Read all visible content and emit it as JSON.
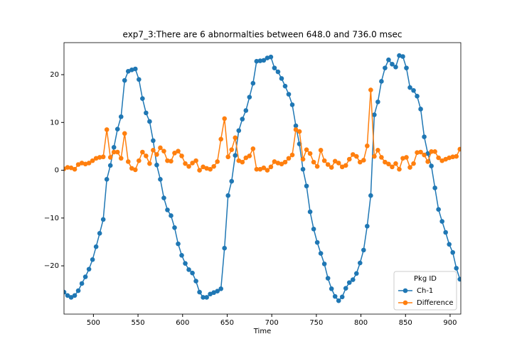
{
  "chart_data": {
    "type": "line",
    "title": "exp7_3:There are 6 abnormalties between 648.0 and 736.0 msec",
    "x_label": "Time",
    "x": [
      467,
      471,
      475,
      479,
      483,
      487,
      491,
      495,
      499,
      503,
      507,
      511,
      515,
      519,
      523,
      527,
      531,
      535,
      539,
      543,
      547,
      551,
      555,
      559,
      563,
      567,
      571,
      575,
      579,
      583,
      587,
      591,
      595,
      599,
      603,
      607,
      611,
      615,
      619,
      623,
      627,
      631,
      635,
      639,
      643,
      647,
      651,
      655,
      659,
      663,
      667,
      671,
      675,
      679,
      683,
      687,
      691,
      695,
      699,
      703,
      707,
      711,
      715,
      719,
      723,
      727,
      731,
      735,
      739,
      743,
      747,
      751,
      755,
      759,
      763,
      767,
      771,
      775,
      779,
      783,
      787,
      791,
      795,
      799,
      803,
      807,
      811,
      815,
      819,
      823,
      827,
      831,
      835,
      839,
      843,
      847,
      851,
      855,
      859,
      863,
      867,
      871,
      875,
      879,
      883,
      887,
      891,
      895,
      899,
      903,
      907,
      911
    ],
    "series": [
      {
        "name": "Ch-1",
        "color": "#1f77b4",
        "values": [
          -25.5,
          -26.2,
          -26.6,
          -26.2,
          -25.2,
          -23.7,
          -22.3,
          -20.7,
          -18.7,
          -16,
          -13.2,
          -10.3,
          -1.9,
          1,
          4.8,
          8.6,
          11.2,
          18.8,
          20.7,
          21,
          21.2,
          19,
          15,
          12,
          10.2,
          6.2,
          1.1,
          -1.9,
          -5.8,
          -8.3,
          -9.5,
          -12,
          -15.4,
          -17.8,
          -19.5,
          -20.8,
          -21.5,
          -23.2,
          -25.5,
          -26.6,
          -26.6,
          -25.9,
          -25.6,
          -25.3,
          -24.8,
          -16.3,
          -5.3,
          -2.3,
          3.1,
          8.3,
          10.7,
          12.5,
          15.3,
          18.2,
          22.8,
          22.9,
          23,
          23.5,
          23.7,
          21.4,
          20.6,
          19.2,
          17.6,
          15.9,
          13.7,
          9.3,
          5.5,
          0.2,
          -3.3,
          -8.7,
          -12.3,
          -15.1,
          -17.4,
          -19.6,
          -22.6,
          -24.8,
          -26.4,
          -27.3,
          -26.5,
          -24.7,
          -23.5,
          -22.9,
          -21.6,
          -19.4,
          -16.7,
          -11.7,
          -5.3,
          11.6,
          14.3,
          18.6,
          21.4,
          23.1,
          22.2,
          21.6,
          24,
          23.8,
          21.4,
          17.3,
          16.7,
          15.5,
          12.8,
          7,
          3.5,
          0.9,
          -3.7,
          -8.2,
          -10.7,
          -13,
          -15.5,
          -17.2,
          -20.5,
          -22.8
        ]
      },
      {
        "name": "Difference",
        "color": "#ff7f0e",
        "values": [
          0.3,
          0.6,
          0.5,
          0.2,
          1.2,
          1.5,
          1.3,
          1.5,
          2,
          2.5,
          2.7,
          2.8,
          8.5,
          2.7,
          3.8,
          3.8,
          2.5,
          7.7,
          1.8,
          0.4,
          0.1,
          2,
          3.8,
          3,
          1.4,
          4.2,
          3.3,
          4.7,
          4,
          2,
          1.9,
          3.6,
          4,
          3,
          1.4,
          0.8,
          1.5,
          2,
          0,
          0.7,
          0.4,
          0.2,
          0.8,
          1.8,
          6.5,
          10.8,
          2.8,
          4.3,
          6.8,
          2,
          1.7,
          2.6,
          3,
          4.5,
          0.2,
          0.2,
          0.5,
          0,
          0.7,
          1.8,
          1.5,
          1.3,
          1.7,
          2.5,
          3.2,
          8.5,
          8.1,
          2.3,
          4.3,
          3.5,
          1.7,
          0.8,
          4.2,
          2,
          1.2,
          0.6,
          1.9,
          1.5,
          0.7,
          1,
          2.3,
          3.3,
          2.9,
          1.7,
          2.1,
          5.1,
          16.8,
          2.9,
          4.2,
          2.7,
          1.7,
          1.3,
          0.7,
          1.4,
          0.2,
          2.5,
          2.7,
          0.6,
          1.4,
          3.7,
          3.8,
          3.2,
          1.8,
          3.9,
          3.9,
          2.6,
          2,
          2.3,
          2.6,
          2.8,
          2.9,
          4.4
        ]
      }
    ],
    "xlim": [
      467,
      912
    ],
    "ylim": [
      -30.1,
      26.7
    ],
    "xticks": [
      500,
      550,
      600,
      650,
      700,
      750,
      800,
      850,
      900
    ],
    "yticks": [
      {
        "value": -20,
        "label": "−20"
      },
      {
        "value": -10,
        "label": "−10"
      },
      0,
      10,
      20
    ],
    "legend_title": "Pkg ID",
    "legend": "lower right",
    "grid": false
  }
}
